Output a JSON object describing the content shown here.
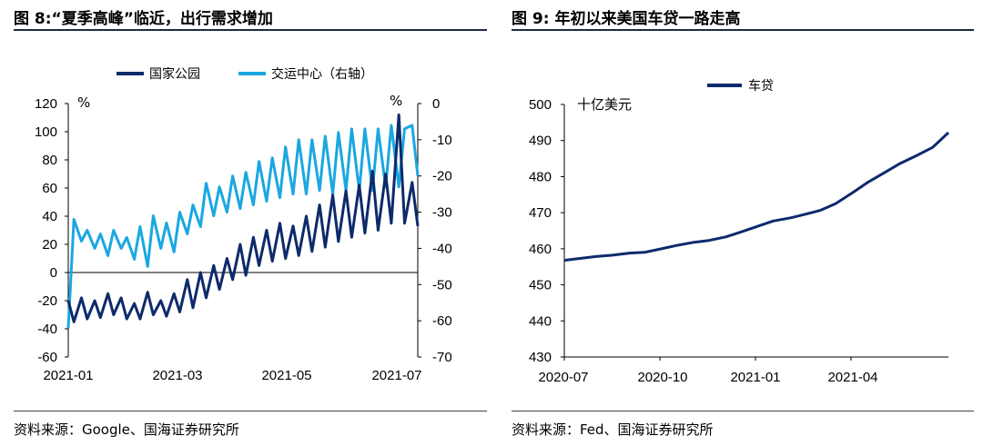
{
  "left": {
    "title": "图 8:“夏季高峰”临近，出行需求增加",
    "source": "资料来源：Google、国海证券研究所"
  },
  "right": {
    "title": "图 9: 年初以来美国车贷一路走高",
    "source": "资料来源：Fed、国海证券研究所"
  },
  "colors": {
    "navy": "#0d2a6b",
    "sky": "#1aa7e0",
    "rule": "#1f2a44"
  },
  "chart_data": [
    {
      "type": "line",
      "dual_axis": true,
      "title": "",
      "x_tick_labels": [
        "2021-01",
        "2021-03",
        "2021-05",
        "2021-07"
      ],
      "xlim": [
        "2021-01-01",
        "2021-07-05"
      ],
      "ylim_left": [
        -60,
        120
      ],
      "ylim_right": [
        -70,
        0
      ],
      "yticks_left": [
        120,
        100,
        80,
        60,
        40,
        20,
        0,
        -20,
        -40,
        -60
      ],
      "yticks_right": [
        0,
        -10,
        -20,
        -30,
        -40,
        -50,
        -60,
        -70
      ],
      "y_unit_left": "%",
      "y_unit_right": "%",
      "legend_position": "top",
      "series": [
        {
          "name": "国家公园",
          "axis": "left",
          "x": [
            "2021-01-01",
            "2021-01-04",
            "2021-01-08",
            "2021-01-11",
            "2021-01-15",
            "2021-01-18",
            "2021-01-22",
            "2021-01-25",
            "2021-01-29",
            "2021-02-01",
            "2021-02-05",
            "2021-02-08",
            "2021-02-12",
            "2021-02-15",
            "2021-02-19",
            "2021-02-22",
            "2021-02-26",
            "2021-03-01",
            "2021-03-05",
            "2021-03-08",
            "2021-03-12",
            "2021-03-15",
            "2021-03-19",
            "2021-03-22",
            "2021-03-26",
            "2021-03-29",
            "2021-04-02",
            "2021-04-05",
            "2021-04-09",
            "2021-04-12",
            "2021-04-16",
            "2021-04-19",
            "2021-04-23",
            "2021-04-26",
            "2021-04-30",
            "2021-05-03",
            "2021-05-07",
            "2021-05-10",
            "2021-05-14",
            "2021-05-17",
            "2021-05-21",
            "2021-05-24",
            "2021-05-28",
            "2021-05-31",
            "2021-06-04",
            "2021-06-07",
            "2021-06-11",
            "2021-06-14",
            "2021-06-18",
            "2021-06-21",
            "2021-06-25",
            "2021-06-28",
            "2021-07-02",
            "2021-07-05"
          ],
          "values": [
            -20,
            -35,
            -18,
            -33,
            -20,
            -32,
            -15,
            -30,
            -18,
            -33,
            -22,
            -33,
            -14,
            -30,
            -20,
            -31,
            -15,
            -28,
            -5,
            -25,
            0,
            -18,
            5,
            -12,
            10,
            -5,
            20,
            -2,
            25,
            5,
            30,
            8,
            35,
            10,
            33,
            12,
            40,
            15,
            48,
            18,
            55,
            22,
            58,
            25,
            62,
            28,
            72,
            30,
            70,
            35,
            112,
            35,
            64,
            33
          ]
        },
        {
          "name": "交运中心（右轴）",
          "axis": "right",
          "x": [
            "2021-01-01",
            "2021-01-04",
            "2021-01-08",
            "2021-01-11",
            "2021-01-15",
            "2021-01-18",
            "2021-01-22",
            "2021-01-25",
            "2021-01-29",
            "2021-02-01",
            "2021-02-05",
            "2021-02-08",
            "2021-02-12",
            "2021-02-15",
            "2021-02-19",
            "2021-02-22",
            "2021-02-26",
            "2021-03-01",
            "2021-03-05",
            "2021-03-08",
            "2021-03-12",
            "2021-03-15",
            "2021-03-19",
            "2021-03-22",
            "2021-03-26",
            "2021-03-29",
            "2021-04-02",
            "2021-04-05",
            "2021-04-09",
            "2021-04-12",
            "2021-04-16",
            "2021-04-19",
            "2021-04-23",
            "2021-04-26",
            "2021-04-30",
            "2021-05-03",
            "2021-05-07",
            "2021-05-10",
            "2021-05-14",
            "2021-05-17",
            "2021-05-21",
            "2021-05-24",
            "2021-05-28",
            "2021-05-31",
            "2021-06-04",
            "2021-06-07",
            "2021-06-11",
            "2021-06-14",
            "2021-06-18",
            "2021-06-21",
            "2021-06-25",
            "2021-06-28",
            "2021-07-02",
            "2021-07-05"
          ],
          "values": [
            -62,
            -32,
            -38,
            -35,
            -40,
            -36,
            -42,
            -35,
            -40,
            -37,
            -43,
            -34,
            -45,
            -31,
            -40,
            -33,
            -41,
            -30,
            -36,
            -28,
            -34,
            -22,
            -31,
            -23,
            -30,
            -20,
            -29,
            -19,
            -28,
            -16,
            -27,
            -15,
            -26,
            -12,
            -25,
            -10,
            -25,
            -10,
            -24,
            -9,
            -25,
            -8,
            -24,
            -7,
            -24,
            -7,
            -24,
            -7,
            -23,
            -6,
            -23,
            -7,
            -6,
            -20
          ]
        }
      ]
    },
    {
      "type": "line",
      "title": "",
      "x_tick_labels": [
        "2020-07",
        "2020-10",
        "2021-01",
        "2021-04"
      ],
      "xlim": [
        "2020-07-01",
        "2021-06-30"
      ],
      "ylim": [
        430,
        500
      ],
      "yticks": [
        500,
        490,
        480,
        470,
        460,
        450,
        440,
        430
      ],
      "y_unit": "十亿美元",
      "legend_position": "top",
      "series": [
        {
          "name": "车贷",
          "x": [
            "2020-07-01",
            "2020-07-15",
            "2020-08-01",
            "2020-08-15",
            "2020-09-01",
            "2020-09-15",
            "2020-10-01",
            "2020-10-15",
            "2020-11-01",
            "2020-11-15",
            "2020-12-01",
            "2020-12-15",
            "2021-01-01",
            "2021-01-15",
            "2021-02-01",
            "2021-02-15",
            "2021-03-01",
            "2021-03-15",
            "2021-04-01",
            "2021-04-15",
            "2021-05-01",
            "2021-05-15",
            "2021-06-01",
            "2021-06-15",
            "2021-06-30"
          ],
          "values": [
            456.8,
            457.3,
            457.9,
            458.2,
            458.8,
            459.0,
            460.0,
            460.9,
            461.8,
            462.3,
            463.3,
            464.6,
            466.3,
            467.7,
            468.6,
            469.6,
            470.7,
            472.5,
            475.7,
            478.5,
            481.2,
            483.6,
            486.0,
            488.1,
            492.2
          ]
        }
      ]
    }
  ]
}
